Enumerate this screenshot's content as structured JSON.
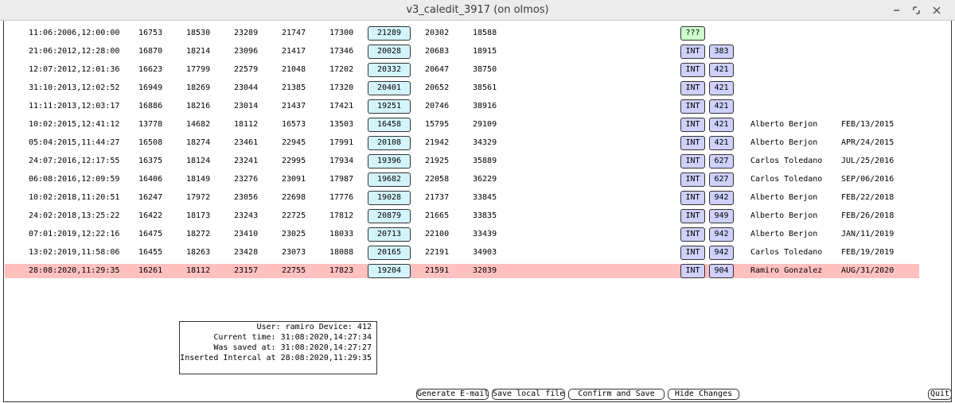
{
  "window": {
    "title": "v3_caledit_3917 (on olmos)"
  },
  "table": {
    "rows": [
      {
        "timestamp": "11:06:2006,12:00:00",
        "values": [
          16753,
          18530,
          23289,
          21747,
          17300,
          21289,
          20302,
          18588
        ],
        "tag": "???"
      },
      {
        "timestamp": "21:06:2012,12:28:00",
        "values": [
          16870,
          18214,
          23096,
          21417,
          17346,
          20028,
          20683,
          18915
        ],
        "tag": "INT",
        "code": 383
      },
      {
        "timestamp": "12:07:2012,12:01:36",
        "values": [
          16623,
          17799,
          22579,
          21048,
          17202,
          20332,
          20647,
          38750
        ],
        "tag": "INT",
        "code": 421
      },
      {
        "timestamp": "31:10:2013,12:02:52",
        "values": [
          16949,
          18269,
          23044,
          21385,
          17320,
          20401,
          20652,
          38561
        ],
        "tag": "INT",
        "code": 421
      },
      {
        "timestamp": "11:11:2013,12:03:17",
        "values": [
          16886,
          18216,
          23014,
          21437,
          17421,
          19251,
          20746,
          38916
        ],
        "tag": "INT",
        "code": 421
      },
      {
        "timestamp": "10:02:2015,12:41:12",
        "values": [
          13778,
          14682,
          18112,
          16573,
          13503,
          16458,
          15795,
          29109
        ],
        "tag": "INT",
        "code": 421,
        "user": "Alberto Berjon",
        "date": "FEB/13/2015"
      },
      {
        "timestamp": "05:04:2015,11:44:27",
        "values": [
          16508,
          18274,
          23461,
          22945,
          17991,
          20108,
          21942,
          34329
        ],
        "tag": "INT",
        "code": 421,
        "user": "Alberto Berjon",
        "date": "APR/24/2015"
      },
      {
        "timestamp": "24:07:2016,12:17:55",
        "values": [
          16375,
          18124,
          23241,
          22995,
          17934,
          19396,
          21925,
          35889
        ],
        "tag": "INT",
        "code": 627,
        "user": "Carlos Toledano",
        "date": "JUL/25/2016"
      },
      {
        "timestamp": "06:08:2016,12:09:59",
        "values": [
          16406,
          18149,
          23276,
          23091,
          17987,
          19682,
          22058,
          36229
        ],
        "tag": "INT",
        "code": 627,
        "user": "Carlos Toledano",
        "date": "SEP/06/2016"
      },
      {
        "timestamp": "10:02:2018,11:20:51",
        "values": [
          16247,
          17972,
          23056,
          22698,
          17776,
          19028,
          21737,
          33845
        ],
        "tag": "INT",
        "code": 942,
        "user": "Alberto Berjon",
        "date": "FEB/22/2018"
      },
      {
        "timestamp": "24:02:2018,13:25:22",
        "values": [
          16422,
          18173,
          23243,
          22725,
          17812,
          20879,
          21665,
          33835
        ],
        "tag": "INT",
        "code": 949,
        "user": "Alberto Berjon",
        "date": "FEB/26/2018"
      },
      {
        "timestamp": "07:01:2019,12:22:16",
        "values": [
          16475,
          18272,
          23410,
          23025,
          18033,
          20713,
          22100,
          33439
        ],
        "tag": "INT",
        "code": 942,
        "user": "Alberto Berjon",
        "date": "JAN/11/2019"
      },
      {
        "timestamp": "13:02:2019,11:58:06",
        "values": [
          16455,
          18263,
          23428,
          23073,
          18088,
          20165,
          22191,
          34903
        ],
        "tag": "INT",
        "code": 942,
        "user": "Carlos Toledano",
        "date": "FEB/19/2019"
      },
      {
        "timestamp": "28:08:2020,11:29:35",
        "values": [
          16261,
          18112,
          23157,
          22755,
          17823,
          19204,
          21591,
          32039
        ],
        "tag": "INT",
        "code": 904,
        "user": "Ramiro Gonzalez",
        "date": "AUG/31/2020",
        "highlighted": true
      }
    ]
  },
  "info": {
    "lines": [
      "User: ramiro Device: 412",
      "Current time: 31:08:2020,14:27:34",
      "Was saved at: 31:08:2020,14:27:27",
      "Inserted Intercal at 28:08:2020,11:29:35"
    ]
  },
  "buttons": [
    "Generate E-mail",
    "Save local file",
    "Confirm and Save",
    "Hide Changes"
  ],
  "quit": "Quit"
}
